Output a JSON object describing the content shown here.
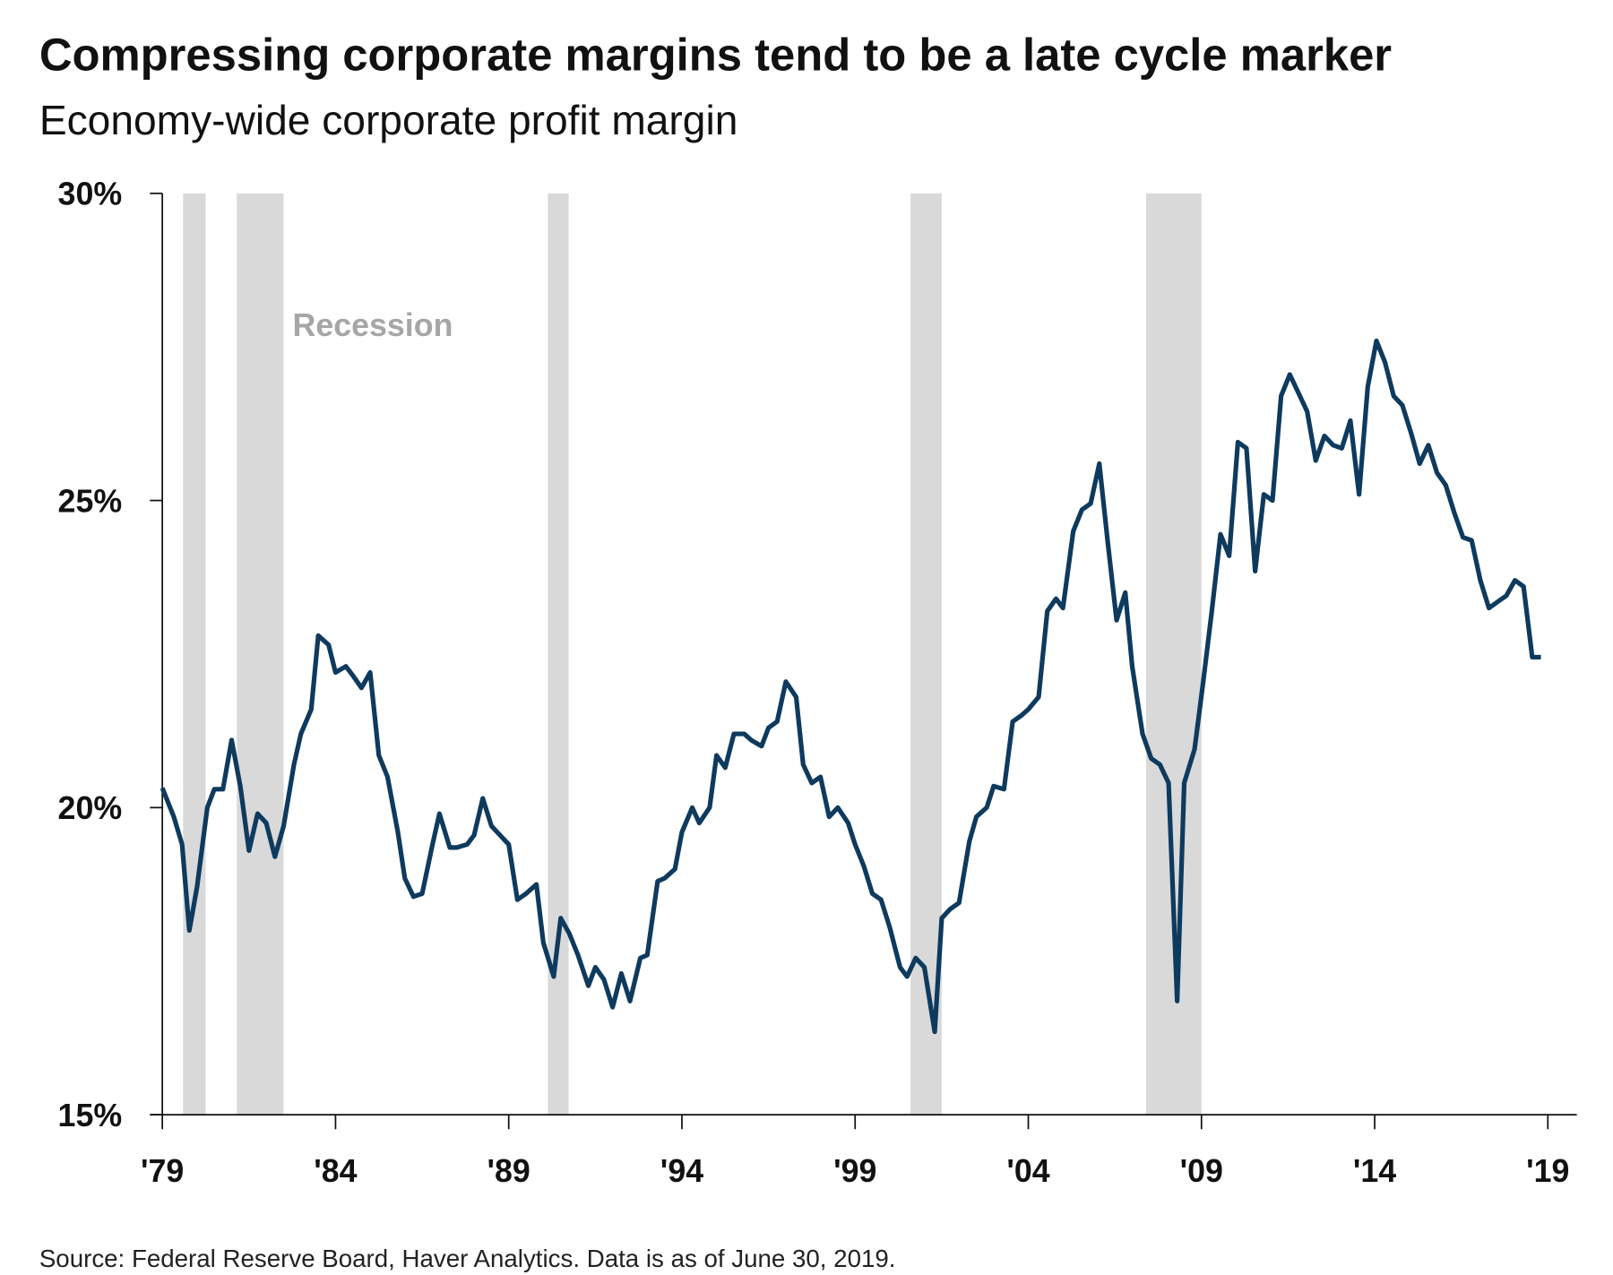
{
  "title": "Compressing corporate margins tend to be a late cycle marker",
  "subtitle": "Economy-wide corporate profit margin",
  "source": "Source: Federal Reserve Board, Haver Analytics. Data is as of June 30, 2019.",
  "colors": {
    "line": "#0e3a5e",
    "recession": "#d9d9d9",
    "recession_label": "#a6a6a6",
    "axis": "#111111"
  },
  "chart_data": {
    "type": "line",
    "title": "Compressing corporate margins tend to be a late cycle marker",
    "subtitle": "Economy-wide corporate profit margin",
    "xlabel": "",
    "ylabel": "",
    "xlim": [
      1979,
      2019
    ],
    "ylim": [
      15,
      30
    ],
    "grid": false,
    "x_ticks": [
      1979,
      1984,
      1989,
      1994,
      1999,
      2004,
      2009,
      2014,
      2019
    ],
    "x_tick_labels": [
      "'79",
      "'84",
      "'89",
      "'94",
      "'99",
      "'04",
      "'09",
      "'14",
      "'19"
    ],
    "y_ticks": [
      15,
      20,
      25,
      30
    ],
    "y_tick_labels": [
      "15%",
      "20%",
      "25%",
      "30%"
    ],
    "recession_label": "Recession",
    "recessions": [
      [
        1979.6,
        1980.25
      ],
      [
        1981.15,
        1982.5
      ],
      [
        1990.13,
        1990.73
      ],
      [
        2000.6,
        2001.5
      ],
      [
        2007.4,
        2009.0
      ]
    ],
    "series": [
      {
        "points": [
          [
            1979.0,
            20.32
          ],
          [
            1979.33,
            19.85
          ],
          [
            1979.57,
            19.4
          ],
          [
            1979.78,
            18.0
          ],
          [
            1980.0,
            18.7
          ],
          [
            1980.3,
            20.0
          ],
          [
            1980.5,
            20.3
          ],
          [
            1980.75,
            20.3
          ],
          [
            1981.0,
            21.1
          ],
          [
            1981.25,
            20.35
          ],
          [
            1981.5,
            19.3
          ],
          [
            1981.75,
            19.9
          ],
          [
            1982.0,
            19.75
          ],
          [
            1982.25,
            19.2
          ],
          [
            1982.5,
            19.7
          ],
          [
            1982.8,
            20.7
          ],
          [
            1983.0,
            21.2
          ],
          [
            1983.3,
            21.6
          ],
          [
            1983.5,
            22.8
          ],
          [
            1983.8,
            22.65
          ],
          [
            1984.0,
            22.2
          ],
          [
            1984.3,
            22.3
          ],
          [
            1984.5,
            22.15
          ],
          [
            1984.75,
            21.95
          ],
          [
            1985.0,
            22.2
          ],
          [
            1985.25,
            20.85
          ],
          [
            1985.5,
            20.5
          ],
          [
            1985.8,
            19.6
          ],
          [
            1986.0,
            18.85
          ],
          [
            1986.25,
            18.55
          ],
          [
            1986.5,
            18.6
          ],
          [
            1986.8,
            19.4
          ],
          [
            1987.0,
            19.9
          ],
          [
            1987.3,
            19.35
          ],
          [
            1987.5,
            19.35
          ],
          [
            1987.8,
            19.4
          ],
          [
            1988.0,
            19.55
          ],
          [
            1988.25,
            20.15
          ],
          [
            1988.5,
            19.7
          ],
          [
            1988.75,
            19.55
          ],
          [
            1989.0,
            19.4
          ],
          [
            1989.25,
            18.5
          ],
          [
            1989.5,
            18.6
          ],
          [
            1989.8,
            18.75
          ],
          [
            1990.0,
            17.8
          ],
          [
            1990.3,
            17.25
          ],
          [
            1990.5,
            18.2
          ],
          [
            1990.75,
            17.95
          ],
          [
            1991.0,
            17.6
          ],
          [
            1991.3,
            17.1
          ],
          [
            1991.5,
            17.4
          ],
          [
            1991.75,
            17.2
          ],
          [
            1992.0,
            16.75
          ],
          [
            1992.25,
            17.3
          ],
          [
            1992.5,
            16.85
          ],
          [
            1992.8,
            17.55
          ],
          [
            1993.0,
            17.6
          ],
          [
            1993.3,
            18.8
          ],
          [
            1993.5,
            18.85
          ],
          [
            1993.8,
            19.0
          ],
          [
            1994.0,
            19.6
          ],
          [
            1994.3,
            20.0
          ],
          [
            1994.5,
            19.75
          ],
          [
            1994.8,
            20.0
          ],
          [
            1995.0,
            20.85
          ],
          [
            1995.25,
            20.65
          ],
          [
            1995.5,
            21.2
          ],
          [
            1995.8,
            21.2
          ],
          [
            1996.0,
            21.1
          ],
          [
            1996.3,
            21.0
          ],
          [
            1996.5,
            21.3
          ],
          [
            1996.75,
            21.4
          ],
          [
            1997.0,
            22.05
          ],
          [
            1997.3,
            21.8
          ],
          [
            1997.5,
            20.7
          ],
          [
            1997.75,
            20.4
          ],
          [
            1998.0,
            20.5
          ],
          [
            1998.25,
            19.85
          ],
          [
            1998.5,
            20.0
          ],
          [
            1998.8,
            19.75
          ],
          [
            1999.0,
            19.4
          ],
          [
            1999.25,
            19.05
          ],
          [
            1999.5,
            18.6
          ],
          [
            1999.75,
            18.5
          ],
          [
            2000.0,
            18.05
          ],
          [
            2000.3,
            17.4
          ],
          [
            2000.5,
            17.25
          ],
          [
            2000.75,
            17.55
          ],
          [
            2001.0,
            17.4
          ],
          [
            2001.3,
            16.35
          ],
          [
            2001.5,
            18.2
          ],
          [
            2001.75,
            18.35
          ],
          [
            2002.0,
            18.45
          ],
          [
            2002.3,
            19.45
          ],
          [
            2002.5,
            19.85
          ],
          [
            2002.8,
            20.0
          ],
          [
            2003.0,
            20.35
          ],
          [
            2003.3,
            20.3
          ],
          [
            2003.55,
            21.4
          ],
          [
            2003.8,
            21.5
          ],
          [
            2004.0,
            21.6
          ],
          [
            2004.3,
            21.8
          ],
          [
            2004.55,
            23.2
          ],
          [
            2004.8,
            23.4
          ],
          [
            2005.0,
            23.25
          ],
          [
            2005.3,
            24.5
          ],
          [
            2005.55,
            24.85
          ],
          [
            2005.8,
            24.95
          ],
          [
            2006.05,
            25.6
          ],
          [
            2006.3,
            24.3
          ],
          [
            2006.55,
            23.05
          ],
          [
            2006.8,
            23.5
          ],
          [
            2007.0,
            22.3
          ],
          [
            2007.3,
            21.2
          ],
          [
            2007.55,
            20.8
          ],
          [
            2007.8,
            20.7
          ],
          [
            2008.05,
            20.4
          ],
          [
            2008.3,
            16.85
          ],
          [
            2008.5,
            20.4
          ],
          [
            2008.8,
            20.95
          ],
          [
            2009.05,
            22.05
          ],
          [
            2009.3,
            23.2
          ],
          [
            2009.55,
            24.45
          ],
          [
            2009.8,
            24.1
          ],
          [
            2010.05,
            25.95
          ],
          [
            2010.3,
            25.85
          ],
          [
            2010.55,
            23.85
          ],
          [
            2010.8,
            25.1
          ],
          [
            2011.05,
            25.0
          ],
          [
            2011.3,
            26.7
          ],
          [
            2011.55,
            27.05
          ],
          [
            2011.8,
            26.75
          ],
          [
            2012.05,
            26.45
          ],
          [
            2012.3,
            25.65
          ],
          [
            2012.55,
            26.05
          ],
          [
            2012.8,
            25.9
          ],
          [
            2013.05,
            25.85
          ],
          [
            2013.3,
            26.3
          ],
          [
            2013.55,
            25.1
          ],
          [
            2013.8,
            26.85
          ],
          [
            2014.05,
            27.6
          ],
          [
            2014.3,
            27.25
          ],
          [
            2014.55,
            26.7
          ],
          [
            2014.8,
            26.55
          ],
          [
            2015.05,
            26.1
          ],
          [
            2015.3,
            25.6
          ],
          [
            2015.55,
            25.9
          ],
          [
            2015.8,
            25.45
          ],
          [
            2016.05,
            25.25
          ],
          [
            2016.3,
            24.8
          ],
          [
            2016.55,
            24.4
          ],
          [
            2016.8,
            24.35
          ],
          [
            2017.05,
            23.7
          ],
          [
            2017.3,
            23.25
          ],
          [
            2017.55,
            23.35
          ],
          [
            2017.8,
            23.45
          ],
          [
            2018.05,
            23.7
          ],
          [
            2018.3,
            23.6
          ],
          [
            2018.55,
            22.45
          ],
          [
            2018.8,
            22.45
          ]
        ]
      }
    ]
  }
}
